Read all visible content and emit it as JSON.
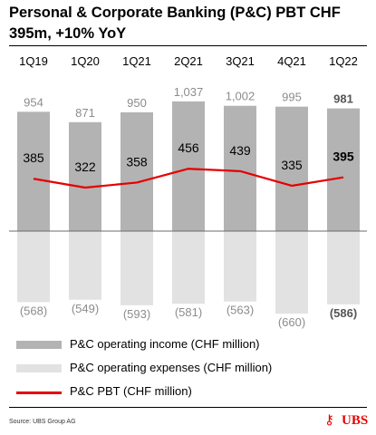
{
  "title": "Personal & Corporate Banking (P&C) PBT CHF 395m, +10% YoY",
  "source": "Source: UBS Group AG",
  "logo_text": "UBS",
  "colors": {
    "income": "#b3b3b3",
    "expenses": "#e2e2e2",
    "pbt": "#e60000",
    "value_grey": "#8c8c8c",
    "value_bold": "#555555"
  },
  "chart_data": {
    "type": "bar",
    "categories": [
      "1Q19",
      "1Q20",
      "1Q21",
      "2Q21",
      "3Q21",
      "4Q21",
      "1Q22"
    ],
    "series": [
      {
        "name": "P&C operating income (CHF million)",
        "values": [
          954,
          871,
          950,
          1037,
          1002,
          995,
          981
        ],
        "labels": [
          "954",
          "871",
          "950",
          "1,037",
          "1,002",
          "995",
          "981"
        ]
      },
      {
        "name": "P&C operating expenses (CHF million)",
        "values": [
          -568,
          -549,
          -593,
          -581,
          -563,
          -660,
          -586
        ],
        "labels": [
          "(568)",
          "(549)",
          "(593)",
          "(581)",
          "(563)",
          "(660)",
          "(586)"
        ]
      },
      {
        "name": "P&C PBT (CHF million)",
        "type": "line",
        "values": [
          385,
          322,
          358,
          456,
          439,
          335,
          395
        ],
        "labels": [
          "385",
          "322",
          "358",
          "456",
          "439",
          "335",
          "395"
        ]
      }
    ],
    "highlight_index": 6,
    "legend_position": "bottom-left",
    "grid": false
  }
}
